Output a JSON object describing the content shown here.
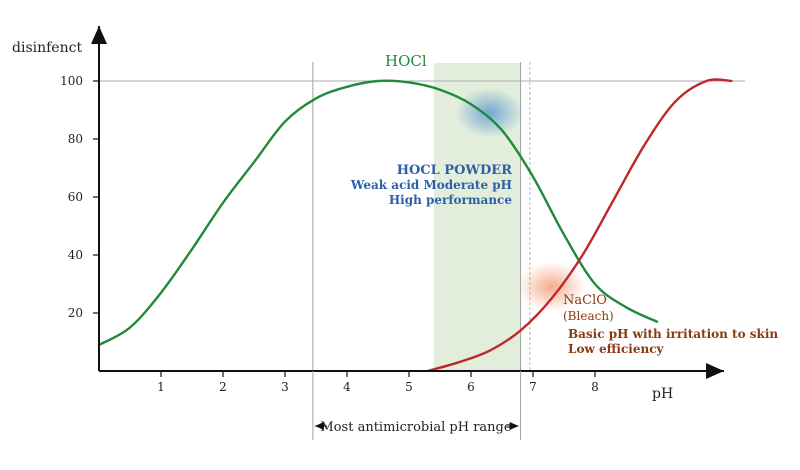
{
  "chart_data": {
    "type": "line",
    "ylabel": "disinfenct",
    "xlabel": "pH",
    "xlim": [
      0,
      10
    ],
    "ylim": [
      0,
      100
    ],
    "x_ticks": [
      1,
      2,
      3,
      4,
      5,
      6,
      7,
      8
    ],
    "y_ticks": [
      20,
      40,
      60,
      80,
      100
    ],
    "series": [
      {
        "name": "HOCl",
        "color": "#1f8a3a",
        "x": [
          0,
          0.5,
          1,
          1.5,
          2,
          2.5,
          3,
          3.5,
          4,
          4.5,
          5,
          5.5,
          6,
          6.5,
          7,
          7.5,
          8,
          8.5,
          9
        ],
        "y": [
          9,
          15,
          27,
          42,
          58,
          72,
          86,
          94,
          98,
          100,
          99.5,
          97,
          92,
          83,
          67,
          47,
          30,
          22,
          17
        ]
      },
      {
        "name": "NaClO",
        "color": "#c0272d",
        "x": [
          5.3,
          5.8,
          6.3,
          6.8,
          7.3,
          7.8,
          8.3,
          8.8,
          9.3,
          9.8,
          10.2
        ],
        "y": [
          0,
          3,
          7,
          14,
          25,
          40,
          59,
          78,
          93,
          100,
          100
        ]
      }
    ],
    "reference_line_y": 100,
    "reference_lines_x": [
      3.45,
      6.8,
      6.95
    ],
    "highlight_band": {
      "x_start": 5.4,
      "x_end": 6.8,
      "color": "#e2eedb"
    },
    "markers": [
      {
        "name": "hocl-powder",
        "x": 6.3,
        "y": 89,
        "color": "#5b9bd5"
      },
      {
        "name": "naclo",
        "x": 7.3,
        "y": 29,
        "color": "#f2a27a"
      }
    ],
    "annotations": {
      "hocl_label": "HOCl",
      "hocl_powder_title": "HOCL POWDER",
      "hocl_powder_line1": "Weak acid Moderate pH",
      "hocl_powder_line2": "High performance",
      "naclo_title": "NaClO",
      "naclo_sub": "(Bleach)",
      "naclo_line1": "Basic pH with irritation to skin",
      "naclo_line2": "Low efficiency",
      "range_label": "Most antimicrobial pH range",
      "range_x": [
        3.45,
        6.8
      ]
    },
    "colors": {
      "axis": "#111111",
      "tick_text": "#222222",
      "hocl_text": "#1f8a3a",
      "powder_text": "#2b5fa6",
      "naclo_text": "#8a3a12"
    }
  }
}
